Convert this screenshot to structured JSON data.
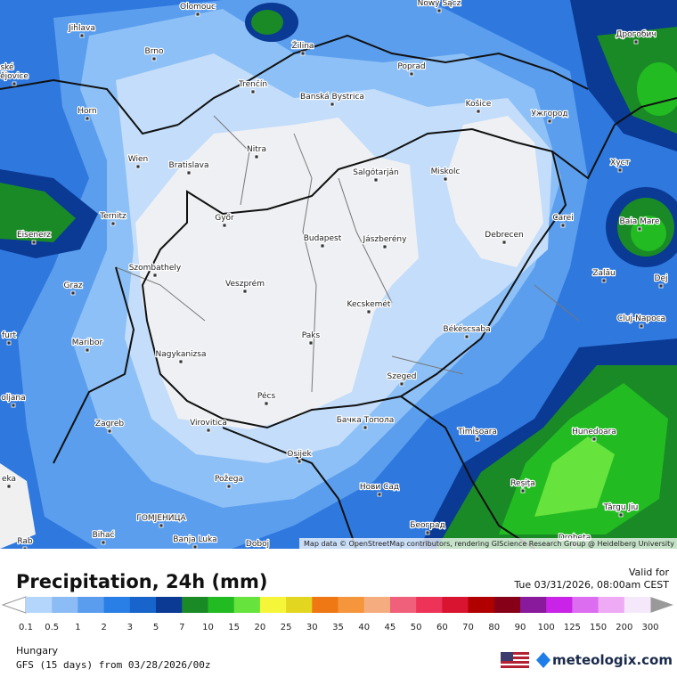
{
  "map": {
    "cities": [
      "Olomouc",
      "Jihlava",
      "Brno",
      "Žilina",
      "Poprad",
      "Nowy Sącz",
      "Дрогобич",
      "Trenčín",
      "Banská Bystrica",
      "Košice",
      "Ужгород",
      "Horn",
      "ské",
      "ějovice",
      "Nitra",
      "Wien",
      "Bratislava",
      "Salgótarján",
      "Miskolc",
      "Хуст",
      "Ternitz",
      "Győr",
      "Carei",
      "Baia Mare",
      "Eisenerz",
      "Budapest",
      "Jászberény",
      "Debrecen",
      "Szombathely",
      "Zalău",
      "Graz",
      "Veszprém",
      "Dej",
      "Kecskemét",
      "Cluj-Napoca",
      "furt",
      "Békéscsaba",
      "Paks",
      "Maribor",
      "Nagykanizsa",
      "Szeged",
      "oljana",
      "Pécs",
      "Бачка Топола",
      "Zagreb",
      "Virovitica",
      "Hunedoara",
      "Timișoara",
      "Osijek",
      "eka",
      "Požega",
      "Нови Сад",
      "Reșița",
      "Târgu Jiu",
      "ГОМЈЕНИЦА",
      "Bihać",
      "Banja Luka",
      "Doboj",
      "Београд",
      "Drobeta",
      "Rab"
    ],
    "attribution": "Map data © OpenStreetMap contributors, rendering GIScience Research Group @ Heidelberg University"
  },
  "panel": {
    "title": "Precipitation, 24h (mm)",
    "valid_label": "Valid for",
    "valid_time": "Tue 03/31/2026, 08:00am CEST",
    "region": "Hungary",
    "model_run": "GFS (15 days) from 03/28/2026/00z",
    "brand": "meteologix.com"
  },
  "legend": {
    "levels": [
      0.1,
      0.5,
      1,
      2,
      3,
      5,
      7,
      10,
      15,
      20,
      25,
      30,
      35,
      40,
      45,
      50,
      60,
      70,
      80,
      90,
      100,
      125,
      150,
      200,
      300
    ],
    "colors": [
      "#b4d6fc",
      "#8cbcf5",
      "#5a9cee",
      "#2a7fe6",
      "#1664cc",
      "#0a3a94",
      "#1a8a26",
      "#22bb22",
      "#66e33c",
      "#f5f53a",
      "#e3d620",
      "#f07814",
      "#f5953c",
      "#f5ad80",
      "#f0607a",
      "#ee3358",
      "#d81430",
      "#b00000",
      "#860018",
      "#8a1a9c",
      "#c823e6",
      "#dc6cf0",
      "#eeaaf5",
      "#f5e8fb"
    ]
  }
}
